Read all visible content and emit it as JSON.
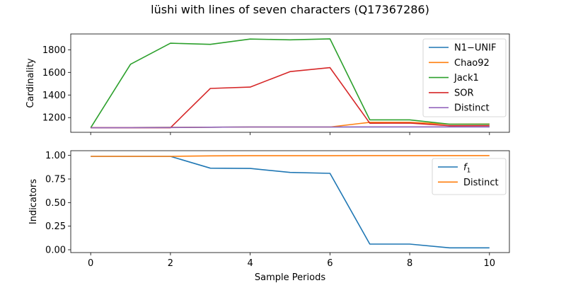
{
  "figure": {
    "title": "lüshi with lines of seven characters (Q17367286)",
    "xlabel": "Sample Periods"
  },
  "chart_data": [
    {
      "type": "line",
      "ylabel": "Cardinality",
      "x": [
        0,
        1,
        2,
        3,
        4,
        5,
        6,
        7,
        8,
        9,
        10
      ],
      "xlim": [
        -0.5,
        10.5
      ],
      "ylim": [
        1070,
        1940
      ],
      "yticks": [
        1200,
        1400,
        1600,
        1800
      ],
      "xticks": [
        0,
        2,
        4,
        6,
        8,
        10
      ],
      "x_tick_labels_shown": false,
      "legend": "top-right",
      "grid": false,
      "series": [
        {
          "name": "N1−UNIF",
          "color": "#1f77b4",
          "values": [
            1110,
            1112,
            1113,
            1115,
            1117,
            1117,
            1117,
            1117,
            1118,
            1118,
            1118
          ]
        },
        {
          "name": "Chao92",
          "color": "#ff7f0e",
          "values": [
            1111,
            1112,
            1113,
            1115,
            1117,
            1117,
            1117,
            1158,
            1158,
            1142,
            1143
          ]
        },
        {
          "name": "Jack1",
          "color": "#2ca02c",
          "values": [
            1110,
            1672,
            1858,
            1848,
            1895,
            1888,
            1897,
            1180,
            1180,
            1142,
            1142
          ]
        },
        {
          "name": "SOR",
          "color": "#d62728",
          "values": [
            1110,
            1110,
            1110,
            1458,
            1470,
            1607,
            1642,
            1150,
            1152,
            1128,
            1129
          ]
        },
        {
          "name": "Distinct",
          "color": "#9467bd",
          "values": [
            1110,
            1111,
            1112,
            1115,
            1117,
            1117,
            1117,
            1118,
            1118,
            1118,
            1118
          ]
        }
      ]
    },
    {
      "type": "line",
      "ylabel": "Indicators",
      "xlabel": "Sample Periods",
      "x": [
        0,
        1,
        2,
        3,
        4,
        5,
        6,
        7,
        8,
        9,
        10
      ],
      "xlim": [
        -0.5,
        10.5
      ],
      "ylim": [
        -0.03,
        1.05
      ],
      "yticks": [
        0.0,
        0.25,
        0.5,
        0.75,
        1.0
      ],
      "ytick_labels": [
        "0.00",
        "0.25",
        "0.50",
        "0.75",
        "1.00"
      ],
      "xticks": [
        0,
        2,
        4,
        6,
        8,
        10
      ],
      "xtick_labels": [
        "0",
        "2",
        "4",
        "6",
        "8",
        "10"
      ],
      "legend": "top-right",
      "grid": false,
      "series": [
        {
          "name": "f1",
          "color": "#1f77b4",
          "values": [
            0.99,
            0.99,
            0.99,
            0.865,
            0.862,
            0.82,
            0.81,
            0.06,
            0.06,
            0.02,
            0.02
          ]
        },
        {
          "name": "Distinct",
          "color": "#ff7f0e",
          "values": [
            0.99,
            0.99,
            0.99,
            0.995,
            0.997,
            0.997,
            0.997,
            0.998,
            0.998,
            0.998,
            0.998
          ]
        }
      ]
    }
  ]
}
